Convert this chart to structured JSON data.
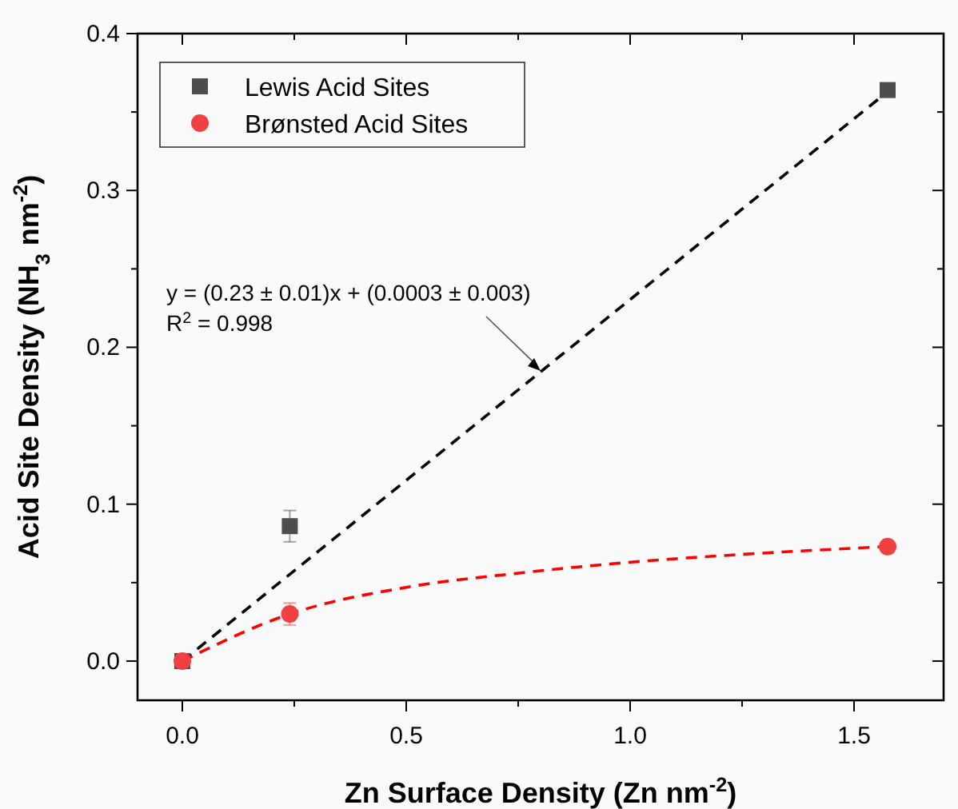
{
  "chart_data": {
    "type": "scatter",
    "xlabel": "Zn Surface Density (Zn nm$^{-2}$)",
    "ylabel": "Acid Site Density (NH$_{3}$ nm$^{-2}$)",
    "xlim": [
      -0.1,
      1.7
    ],
    "ylim": [
      -0.025,
      0.4
    ],
    "xticks": [
      {
        "value": 0,
        "label": "0.0"
      },
      {
        "value": 0.25,
        "label": null
      },
      0.5,
      {
        "value": 0.75,
        "label": null
      },
      {
        "value": 1,
        "label": "1.0"
      },
      {
        "value": 1.25,
        "label": null
      },
      1.5
    ],
    "yticks": [
      {
        "value": 0,
        "label": "0.0"
      },
      {
        "value": 0.05,
        "label": null
      },
      0.1,
      {
        "value": 0.15,
        "label": null
      },
      0.2,
      {
        "value": 0.25,
        "label": null
      },
      0.3,
      {
        "value": 0.35,
        "label": null
      },
      0.4
    ],
    "grid": false,
    "legend": "top left",
    "series": [
      {
        "type": "line",
        "color": "#000000",
        "x": [
          0,
          1.575
        ],
        "values": [
          0,
          0.363
        ],
        "marker": "none",
        "line_style": "dashed"
      },
      {
        "type": "line",
        "color": "#ff0000",
        "x": [
          0,
          0.24,
          0.5,
          0.75,
          1.0,
          1.25,
          1.575
        ],
        "values": [
          0,
          0.03,
          0.047,
          0.056,
          0.063,
          0.068,
          0.073
        ],
        "marker": "none",
        "line_style": "dashed"
      },
      {
        "name": "Lewis Acid Sites",
        "color": "#4d4d4d",
        "marker": "square",
        "x": [
          0,
          0.24,
          1.575
        ],
        "values": [
          0,
          0.086,
          0.364
        ],
        "errors": [
          null,
          0.01,
          null
        ]
      },
      {
        "name": "Brønsted Acid Sites",
        "color": "#f04040",
        "marker": "circle",
        "x": [
          0,
          0.24,
          1.575
        ],
        "values": [
          0,
          0.03,
          0.073
        ],
        "errors": [
          null,
          0.007,
          null
        ]
      }
    ],
    "annotations": [
      {
        "text": "y = (0.23 ± 0.01)x + (0.0003 ± 0.003)",
        "x": 0.8,
        "y": 0.185
      },
      "R$^{2}$ = 0.998"
    ]
  }
}
